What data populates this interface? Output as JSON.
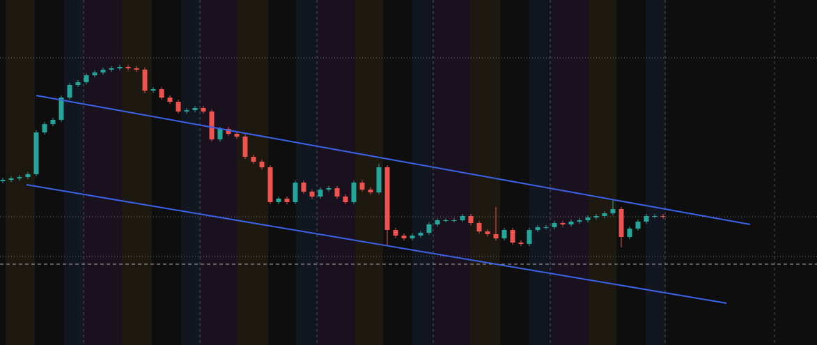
{
  "chart_data": {
    "type": "candlestick",
    "up_color": "#26a69a",
    "down_color": "#ef5350",
    "ylim": [
      0,
      495
    ],
    "open": [
      235,
      237,
      239,
      241,
      245,
      305,
      317,
      323,
      355,
      373,
      377,
      387,
      391,
      395,
      397,
      399,
      397,
      395,
      365,
      367,
      355,
      349,
      335,
      337,
      340,
      335,
      295,
      310,
      303,
      299,
      270,
      263,
      255,
      205,
      210,
      205,
      233,
      220,
      213,
      223,
      225,
      213,
      205,
      233,
      223,
      219,
      255,
      165,
      157,
      153,
      157,
      161,
      173,
      179,
      179,
      179,
      185,
      175,
      163,
      159,
      153,
      165,
      147,
      145,
      165,
      169,
      169,
      175,
      173,
      177,
      179,
      183,
      185,
      189,
      195,
      155,
      167,
      177,
      185,
      185
    ],
    "high": [
      240,
      242,
      244,
      248,
      308,
      320,
      326,
      358,
      376,
      380,
      390,
      394,
      398,
      400,
      402,
      402,
      400,
      398,
      370,
      370,
      358,
      352,
      340,
      343,
      343,
      338,
      313,
      313,
      306,
      302,
      273,
      266,
      258,
      213,
      213,
      236,
      236,
      223,
      226,
      228,
      228,
      216,
      236,
      236,
      226,
      260,
      258,
      168,
      160,
      160,
      164,
      176,
      182,
      182,
      182,
      188,
      188,
      178,
      166,
      198,
      168,
      168,
      150,
      168,
      172,
      172,
      178,
      178,
      180,
      182,
      186,
      188,
      192,
      208,
      198,
      170,
      180,
      188,
      188,
      188
    ],
    "low": [
      232,
      234,
      236,
      238,
      242,
      302,
      314,
      320,
      352,
      370,
      374,
      384,
      388,
      392,
      394,
      394,
      392,
      362,
      362,
      352,
      346,
      332,
      332,
      334,
      332,
      292,
      292,
      300,
      296,
      267,
      260,
      252,
      202,
      202,
      202,
      202,
      217,
      210,
      210,
      220,
      210,
      202,
      202,
      220,
      216,
      216,
      142,
      154,
      150,
      150,
      154,
      158,
      170,
      176,
      176,
      176,
      172,
      160,
      156,
      150,
      150,
      144,
      142,
      142,
      162,
      166,
      166,
      170,
      170,
      174,
      176,
      180,
      182,
      186,
      140,
      152,
      164,
      174,
      182,
      181
    ],
    "close": [
      237,
      239,
      241,
      245,
      305,
      317,
      323,
      355,
      373,
      377,
      387,
      391,
      395,
      397,
      399,
      397,
      395,
      365,
      367,
      355,
      349,
      335,
      337,
      340,
      335,
      295,
      310,
      303,
      299,
      270,
      263,
      255,
      205,
      210,
      205,
      233,
      220,
      213,
      223,
      225,
      213,
      205,
      233,
      223,
      219,
      255,
      165,
      157,
      153,
      157,
      161,
      173,
      179,
      179,
      179,
      185,
      175,
      163,
      159,
      153,
      165,
      147,
      145,
      165,
      169,
      169,
      175,
      173,
      177,
      179,
      183,
      185,
      189,
      195,
      155,
      167,
      177,
      185,
      185,
      184
    ]
  }
}
